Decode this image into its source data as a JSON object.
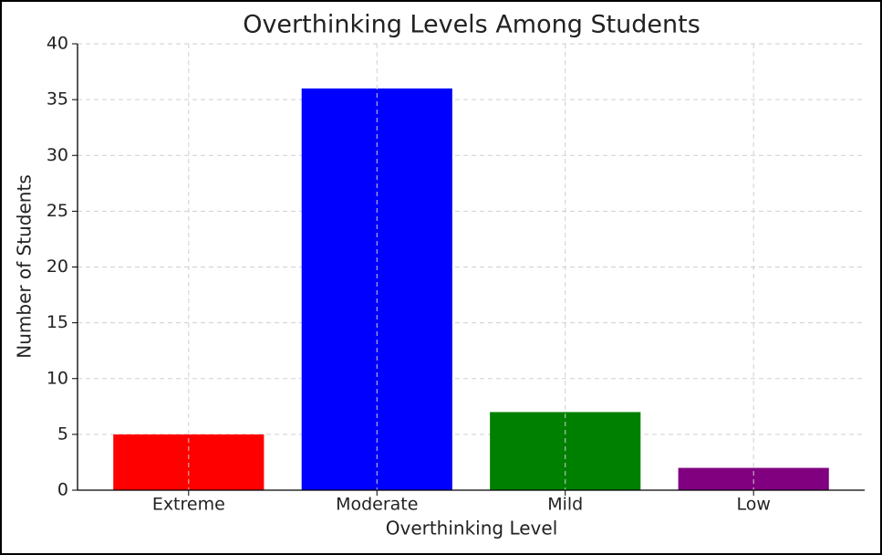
{
  "chart_data": {
    "type": "bar",
    "title": "Overthinking Levels Among Students",
    "x_label": "Overthinking Level",
    "y_label": "Number of Students",
    "categories": [
      "Extreme",
      "Moderate",
      "Mild",
      "Low"
    ],
    "values": [
      5,
      36,
      7,
      2
    ],
    "colors": [
      "#ff0000",
      "#0000ff",
      "#008000",
      "#800080"
    ],
    "ylim": [
      0,
      40
    ],
    "yticks": [
      0,
      5,
      10,
      15,
      20,
      25,
      30,
      35,
      40
    ],
    "grid": true
  }
}
